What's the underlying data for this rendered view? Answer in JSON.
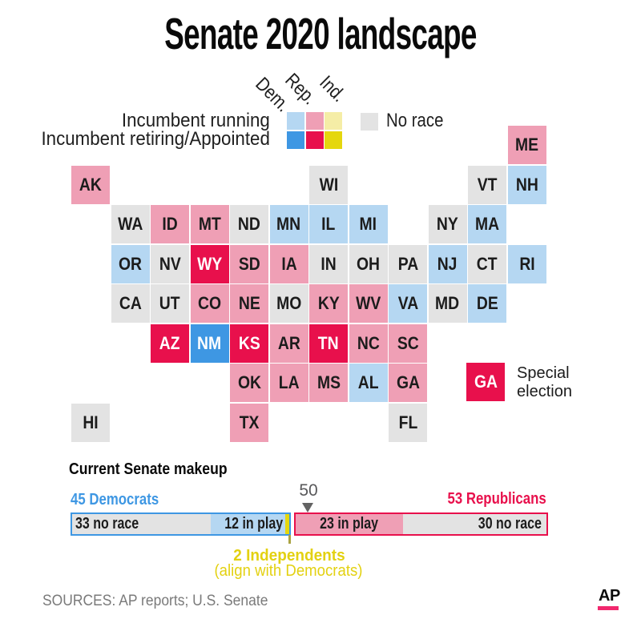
{
  "title": "Senate 2020 landscape",
  "colors": {
    "dem_running": "#b5d7f2",
    "rep_running": "#ef9fb5",
    "ind_running": "#f5eda6",
    "dem_retiring": "#3e97e3",
    "rep_retiring": "#e8104c",
    "ind_retiring": "#e5d70e",
    "no_race": "#e3e3e3",
    "dem_accent": "#3e97e3",
    "rep_accent": "#e8104c",
    "ind_accent": "#e3d111",
    "marker_gray": "#636363",
    "ap_pink": "#f2286e"
  },
  "legend": {
    "party_labels": [
      "Dem.",
      "Rep.",
      "Ind."
    ],
    "row_labels": [
      "Incumbent running",
      "Incumbent retiring/Appointed"
    ],
    "no_race_label": "No race",
    "special_abbr": "GA",
    "special_line1": "Special",
    "special_line2": "election"
  },
  "map": {
    "states": [
      {
        "abbr": "ME",
        "row": 0,
        "col": 11,
        "status": "rep_running"
      },
      {
        "abbr": "AK",
        "row": 1,
        "col": 0,
        "status": "rep_running"
      },
      {
        "abbr": "WI",
        "row": 1,
        "col": 6,
        "status": "no_race"
      },
      {
        "abbr": "VT",
        "row": 1,
        "col": 10,
        "status": "no_race"
      },
      {
        "abbr": "NH",
        "row": 1,
        "col": 11,
        "status": "dem_running"
      },
      {
        "abbr": "WA",
        "row": 2,
        "col": 1,
        "status": "no_race"
      },
      {
        "abbr": "ID",
        "row": 2,
        "col": 2,
        "status": "rep_running"
      },
      {
        "abbr": "MT",
        "row": 2,
        "col": 3,
        "status": "rep_running"
      },
      {
        "abbr": "ND",
        "row": 2,
        "col": 4,
        "status": "no_race"
      },
      {
        "abbr": "MN",
        "row": 2,
        "col": 5,
        "status": "dem_running"
      },
      {
        "abbr": "IL",
        "row": 2,
        "col": 6,
        "status": "dem_running"
      },
      {
        "abbr": "MI",
        "row": 2,
        "col": 7,
        "status": "dem_running"
      },
      {
        "abbr": "NY",
        "row": 2,
        "col": 9,
        "status": "no_race"
      },
      {
        "abbr": "MA",
        "row": 2,
        "col": 10,
        "status": "dem_running"
      },
      {
        "abbr": "OR",
        "row": 3,
        "col": 1,
        "status": "dem_running"
      },
      {
        "abbr": "NV",
        "row": 3,
        "col": 2,
        "status": "no_race"
      },
      {
        "abbr": "WY",
        "row": 3,
        "col": 3,
        "status": "rep_retiring"
      },
      {
        "abbr": "SD",
        "row": 3,
        "col": 4,
        "status": "rep_running"
      },
      {
        "abbr": "IA",
        "row": 3,
        "col": 5,
        "status": "rep_running"
      },
      {
        "abbr": "IN",
        "row": 3,
        "col": 6,
        "status": "no_race"
      },
      {
        "abbr": "OH",
        "row": 3,
        "col": 7,
        "status": "no_race"
      },
      {
        "abbr": "PA",
        "row": 3,
        "col": 8,
        "status": "no_race"
      },
      {
        "abbr": "NJ",
        "row": 3,
        "col": 9,
        "status": "dem_running"
      },
      {
        "abbr": "CT",
        "row": 3,
        "col": 10,
        "status": "no_race"
      },
      {
        "abbr": "RI",
        "row": 3,
        "col": 11,
        "status": "dem_running"
      },
      {
        "abbr": "CA",
        "row": 4,
        "col": 1,
        "status": "no_race"
      },
      {
        "abbr": "UT",
        "row": 4,
        "col": 2,
        "status": "no_race"
      },
      {
        "abbr": "CO",
        "row": 4,
        "col": 3,
        "status": "rep_running"
      },
      {
        "abbr": "NE",
        "row": 4,
        "col": 4,
        "status": "rep_running"
      },
      {
        "abbr": "MO",
        "row": 4,
        "col": 5,
        "status": "no_race"
      },
      {
        "abbr": "KY",
        "row": 4,
        "col": 6,
        "status": "rep_running"
      },
      {
        "abbr": "WV",
        "row": 4,
        "col": 7,
        "status": "rep_running"
      },
      {
        "abbr": "VA",
        "row": 4,
        "col": 8,
        "status": "dem_running"
      },
      {
        "abbr": "MD",
        "row": 4,
        "col": 9,
        "status": "no_race"
      },
      {
        "abbr": "DE",
        "row": 4,
        "col": 10,
        "status": "dem_running"
      },
      {
        "abbr": "AZ",
        "row": 5,
        "col": 2,
        "status": "rep_retiring"
      },
      {
        "abbr": "NM",
        "row": 5,
        "col": 3,
        "status": "dem_retiring"
      },
      {
        "abbr": "KS",
        "row": 5,
        "col": 4,
        "status": "rep_retiring"
      },
      {
        "abbr": "AR",
        "row": 5,
        "col": 5,
        "status": "rep_running"
      },
      {
        "abbr": "TN",
        "row": 5,
        "col": 6,
        "status": "rep_retiring"
      },
      {
        "abbr": "NC",
        "row": 5,
        "col": 7,
        "status": "rep_running"
      },
      {
        "abbr": "SC",
        "row": 5,
        "col": 8,
        "status": "rep_running"
      },
      {
        "abbr": "OK",
        "row": 6,
        "col": 4,
        "status": "rep_running"
      },
      {
        "abbr": "LA",
        "row": 6,
        "col": 5,
        "status": "rep_running"
      },
      {
        "abbr": "MS",
        "row": 6,
        "col": 6,
        "status": "rep_running"
      },
      {
        "abbr": "AL",
        "row": 6,
        "col": 7,
        "status": "dem_running"
      },
      {
        "abbr": "GA",
        "row": 6,
        "col": 8,
        "status": "rep_running"
      },
      {
        "abbr": "HI",
        "row": 7,
        "col": 0,
        "status": "no_race"
      },
      {
        "abbr": "TX",
        "row": 7,
        "col": 4,
        "status": "rep_running"
      },
      {
        "abbr": "FL",
        "row": 7,
        "col": 8,
        "status": "no_race"
      }
    ]
  },
  "makeup": {
    "heading": "Current Senate makeup",
    "left_label": "45 Democrats",
    "right_label": "53 Republicans",
    "marker_label": "50",
    "dem_segments": [
      {
        "label": "33 no race",
        "fill": "no_race"
      },
      {
        "label": "12 in play",
        "fill": "dem_running"
      },
      {
        "label": "",
        "fill": "ind_retiring"
      }
    ],
    "rep_segments": [
      {
        "label": "23 in play",
        "fill": "rep_running"
      },
      {
        "label": "30 no race",
        "fill": "no_race"
      }
    ],
    "independents_line1": "2 Independents",
    "independents_line2": "(align with Democrats)"
  },
  "footer": {
    "sources": "SOURCES: AP reports; U.S. Senate",
    "logo_text": "AP"
  },
  "chart_data": {
    "type": "bar",
    "title": "Current Senate makeup",
    "series": [
      {
        "name": "Democrats",
        "total": 45,
        "segments": [
          {
            "label": "no race",
            "value": 33
          },
          {
            "label": "in play",
            "value": 12
          }
        ]
      },
      {
        "name": "Independents",
        "total": 2,
        "note": "align with Democrats"
      },
      {
        "name": "Republicans",
        "total": 53,
        "segments": [
          {
            "label": "in play",
            "value": 23
          },
          {
            "label": "no race",
            "value": 30
          }
        ]
      }
    ],
    "majority_marker": 50,
    "map_legend": [
      "Incumbent running",
      "Incumbent retiring/Appointed",
      "No race",
      "Special election"
    ]
  }
}
